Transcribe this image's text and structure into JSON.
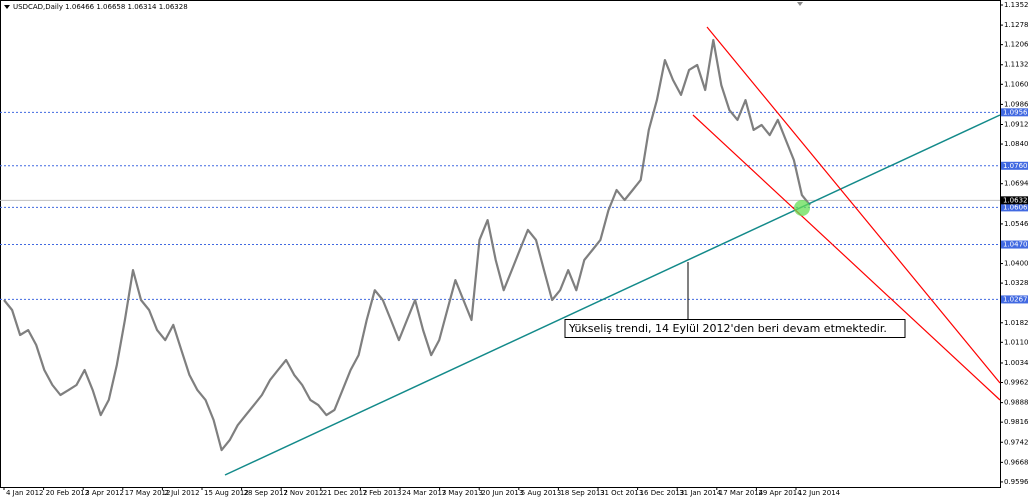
{
  "chart_data": {
    "type": "line",
    "title": "USDCAD,Daily 1.06466 1.06658 1.06314 1.06328",
    "color": "#7f7f7f",
    "values": [
      1.0266,
      1.0229,
      1.0137,
      1.0155,
      1.01,
      1.0008,
      0.9953,
      0.9916,
      0.9934,
      0.9953,
      1.0008,
      0.9934,
      0.9842,
      0.9898,
      1.0026,
      1.0192,
      1.0376,
      1.0266,
      1.0229,
      1.0155,
      1.0118,
      1.0174,
      1.0082,
      0.999,
      0.9934,
      0.9898,
      0.9824,
      0.9713,
      0.975,
      0.9805,
      0.9842,
      0.9879,
      0.9916,
      0.9971,
      1.0008,
      1.0045,
      0.999,
      0.9953,
      0.9898,
      0.9879,
      0.9842,
      0.9861,
      0.9934,
      1.0008,
      1.0063,
      1.0192,
      1.0302,
      1.0266,
      1.0192,
      1.0118,
      1.0192,
      1.0266,
      1.0155,
      1.0063,
      1.0118,
      1.0229,
      1.0339,
      1.0266,
      1.0192,
      1.0487,
      1.056,
      1.0413,
      1.0302,
      1.0376,
      1.045,
      1.0524,
      1.0487,
      1.0376,
      1.0266,
      1.0302,
      1.0376,
      1.0302,
      1.0413,
      1.045,
      1.0487,
      1.0597,
      1.0671,
      1.0634,
      1.0671,
      1.0708,
      1.0892,
      1.1002,
      1.1149,
      1.1076,
      1.1021,
      1.1113,
      1.1131,
      1.1039,
      1.1223,
      1.1057,
      1.0965,
      1.0929,
      1.1002,
      1.0892,
      1.091,
      1.0873,
      1.0929,
      1.0855,
      1.0781,
      1.0652,
      1.0615
    ],
    "ylim": [
      0.95773,
      1.13704
    ],
    "yticks": [
      {
        "value": 1.1352,
        "label": "1.13520"
      },
      {
        "value": 1.1278,
        "label": "1.12780"
      },
      {
        "value": 1.1206,
        "label": "1.12060"
      },
      {
        "value": 1.1132,
        "label": "1.11320"
      },
      {
        "value": 1.106,
        "label": "1.10600"
      },
      {
        "value": 1.0986,
        "label": "1.09860"
      },
      {
        "value": 1.0912,
        "label": "1.09120"
      },
      {
        "value": 1.084,
        "label": "1.08400"
      },
      {
        "value": 1.0694,
        "label": "1.06940"
      },
      {
        "value": 1.0546,
        "label": "1.05460"
      },
      {
        "value": 1.04,
        "label": "1.04000"
      },
      {
        "value": 1.0328,
        "label": "1.03280"
      },
      {
        "value": 1.0182,
        "label": "1.01820"
      },
      {
        "value": 1.011,
        "label": "1.01100"
      },
      {
        "value": 1.0034,
        "label": "1.00340"
      },
      {
        "value": 0.9962,
        "label": "0.99620"
      },
      {
        "value": 0.9888,
        "label": "0.98880"
      },
      {
        "value": 0.9816,
        "label": "0.98160"
      },
      {
        "value": 0.9742,
        "label": "0.97420"
      },
      {
        "value": 0.9668,
        "label": "0.96680"
      },
      {
        "value": 0.9596,
        "label": "0.95960"
      }
    ],
    "levels": [
      {
        "value": 1.09568,
        "label": "1.09568"
      },
      {
        "value": 1.076,
        "label": "1.07600"
      },
      {
        "value": 1.06068,
        "label": "1.06068"
      },
      {
        "value": 1.047,
        "label": "1.04700"
      },
      {
        "value": 1.02679,
        "label": "1.02679"
      }
    ],
    "price": {
      "value": 1.06328,
      "label": "1.06328"
    },
    "x_axis_labels": [
      "4 Jan 2012",
      "20 Feb 2012",
      "3 Apr 2012",
      "17 May 2012",
      "2 Jul 2012",
      "15 Aug 2012",
      "28 Sep 2012",
      "7 Nov 2012",
      "21 Dec 2012",
      "7 Feb 2013",
      "24 Mar 2013",
      "7 May 2013",
      "20 Jun 2013",
      "5 Aug 2013",
      "18 Sep 2013",
      "31 Oct 2013",
      "16 Dec 2013",
      "31 Jan 2014",
      "17 Mar 2014",
      "29 Apr 2014",
      "12 Jun 2014"
    ],
    "annotation": "Yükseliş trendi, 14 Eylül 2012'den beri devam etmektedir."
  }
}
